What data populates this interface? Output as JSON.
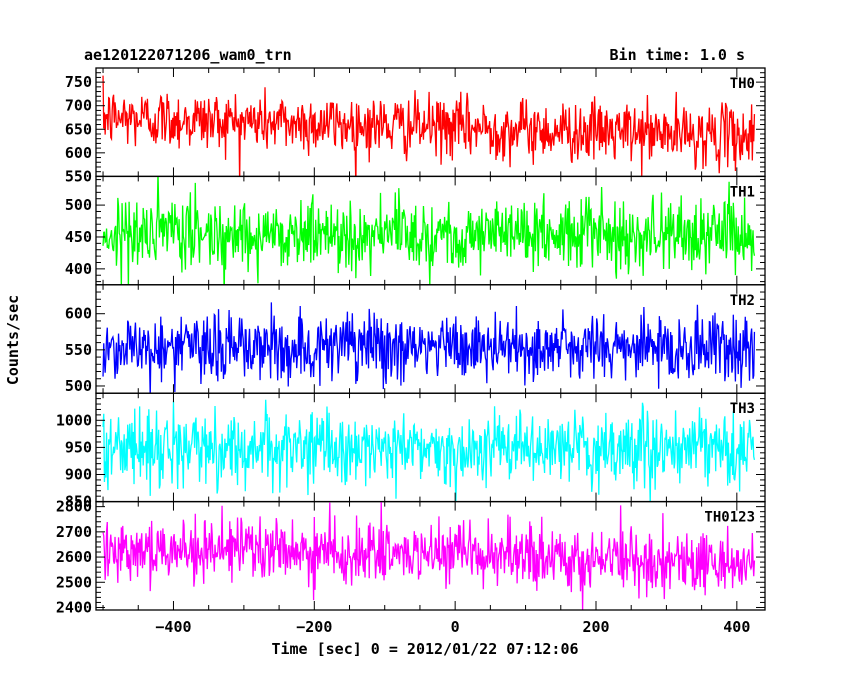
{
  "header": {
    "title": "ae120122071206_wam0_trn",
    "bin_time": "Bin time: 1.0 s"
  },
  "chart_data": {
    "type": "line",
    "xlabel": "Time [sec] 0 = 2012/01/22 07:12:06",
    "ylabel": "Counts/sec",
    "xlim": [
      -510,
      440
    ],
    "xticks": [
      -400,
      -200,
      0,
      200,
      400
    ],
    "x_range": [
      -500,
      425
    ],
    "bin_time_s": 1.0,
    "panels": [
      {
        "name": "TH0",
        "color": "#ff0000",
        "ylim": [
          550,
          780
        ],
        "yticks": [
          550,
          600,
          650,
          700,
          750
        ],
        "mean_start": 675,
        "mean_end": 635,
        "amplitude": 32
      },
      {
        "name": "TH1",
        "color": "#00ff00",
        "ylim": [
          375,
          545
        ],
        "yticks": [
          400,
          450,
          500
        ],
        "mean_start": 455,
        "mean_end": 455,
        "amplitude": 28
      },
      {
        "name": "TH2",
        "color": "#0000ff",
        "ylim": [
          490,
          640
        ],
        "yticks": [
          500,
          550,
          600
        ],
        "mean_start": 553,
        "mean_end": 553,
        "amplitude": 24
      },
      {
        "name": "TH3",
        "color": "#00ffff",
        "ylim": [
          850,
          1050
        ],
        "yticks": [
          850,
          900,
          950,
          1000
        ],
        "mean_start": 950,
        "mean_end": 945,
        "amplitude": 33
      },
      {
        "name": "TH0123",
        "color": "#ff00ff",
        "ylim": [
          2390,
          2820
        ],
        "yticks": [
          2400,
          2500,
          2600,
          2700,
          2800
        ],
        "mean_start": 2640,
        "mean_end": 2575,
        "amplitude": 62
      }
    ]
  }
}
